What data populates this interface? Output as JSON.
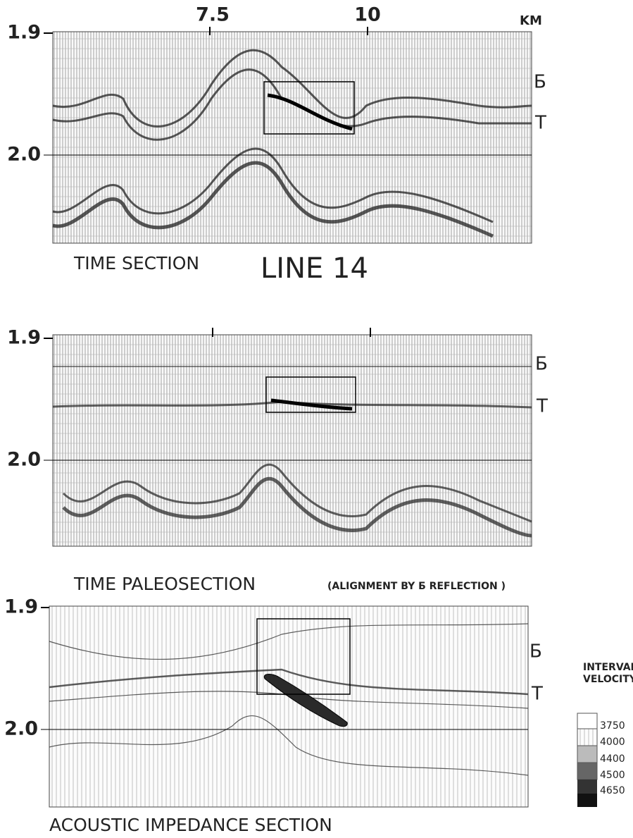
{
  "panels": [
    {
      "y_ticks": [
        "1.9",
        "2.0"
      ],
      "x_ticks": [
        "7.5",
        "10"
      ],
      "x_unit": "KM",
      "horizons": [
        "Б",
        "T"
      ],
      "caption": "TIME SECTION"
    },
    {
      "y_ticks": [
        "1.9",
        "2.0"
      ],
      "horizons": [
        "Б",
        "T"
      ],
      "caption": "TIME PALEOSECTION",
      "caption_note": "(ALIGNMENT BY Б REFLECTION )"
    },
    {
      "y_ticks": [
        "1.9",
        "2.0"
      ],
      "horizons": [
        "Б",
        "T"
      ],
      "caption": "ACOUSTIC IMPEDANCE SECTION"
    }
  ],
  "line_title": "LINE 14",
  "legend": {
    "title_lines": [
      "INTERVAL",
      "VELOCITY"
    ],
    "values": [
      "3750",
      "4000",
      "4400",
      "4500",
      "4650"
    ]
  }
}
